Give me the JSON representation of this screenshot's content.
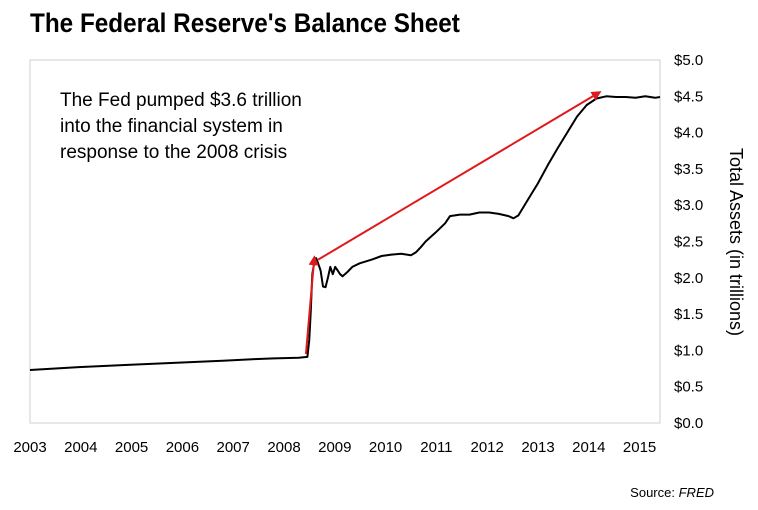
{
  "chart_data": {
    "type": "line",
    "title": "The Federal Reserve's Balance Sheet",
    "ylabel": "Total Assets (in trillions)",
    "xlabel": "",
    "x_tick_labels": [
      "2003",
      "2004",
      "2005",
      "2006",
      "2007",
      "2008",
      "2009",
      "2010",
      "2011",
      "2012",
      "2013",
      "2014",
      "2015"
    ],
    "y_tick_labels": [
      "$0.0",
      "$0.5",
      "$1.0",
      "$1.5",
      "$2.0",
      "$2.5",
      "$3.0",
      "$3.5",
      "$4.0",
      "$4.5",
      "$5.0"
    ],
    "ylim": [
      0,
      5
    ],
    "xlim": [
      2003,
      2015.9
    ],
    "grid": false,
    "y_axis_side": "right",
    "annotation": {
      "lines": [
        "The Fed pumped $3.6 trillion",
        "into the financial system in",
        "response to the 2008 crisis"
      ]
    },
    "series": [
      {
        "x": [
          2003.0,
          2004.0,
          2005.0,
          2006.0,
          2007.0,
          2007.6,
          2008.0,
          2008.5,
          2008.68,
          2008.72,
          2008.75,
          2008.78,
          2008.82,
          2008.86,
          2008.9,
          2008.95,
          2009.0,
          2009.05,
          2009.1,
          2009.15,
          2009.2,
          2009.25,
          2009.3,
          2009.35,
          2009.4,
          2009.5,
          2009.6,
          2009.75,
          2009.9,
          2010.0,
          2010.2,
          2010.4,
          2010.6,
          2010.8,
          2010.9,
          2011.0,
          2011.1,
          2011.3,
          2011.5,
          2011.6,
          2011.8,
          2012.0,
          2012.2,
          2012.4,
          2012.6,
          2012.8,
          2012.9,
          2013.0,
          2013.2,
          2013.4,
          2013.6,
          2013.8,
          2014.0,
          2014.2,
          2014.4,
          2014.6,
          2014.8,
          2015.0,
          2015.2,
          2015.4,
          2015.6,
          2015.8,
          2015.9
        ],
        "values": [
          0.73,
          0.77,
          0.8,
          0.83,
          0.86,
          0.88,
          0.89,
          0.9,
          0.91,
          1.15,
          1.55,
          2.05,
          2.2,
          2.27,
          2.2,
          2.1,
          1.88,
          1.87,
          2.0,
          2.15,
          2.05,
          2.15,
          2.1,
          2.05,
          2.02,
          2.08,
          2.15,
          2.2,
          2.23,
          2.25,
          2.3,
          2.32,
          2.33,
          2.31,
          2.35,
          2.42,
          2.5,
          2.62,
          2.75,
          2.85,
          2.87,
          2.87,
          2.9,
          2.9,
          2.88,
          2.85,
          2.82,
          2.86,
          3.08,
          3.3,
          3.55,
          3.78,
          4.0,
          4.22,
          4.38,
          4.47,
          4.5,
          4.49,
          4.49,
          4.48,
          4.5,
          4.48,
          4.49
        ]
      }
    ],
    "arrows": [
      {
        "from": [
          2008.65,
          0.95
        ],
        "to": [
          2008.82,
          2.27
        ],
        "color": "#e0191b"
      },
      {
        "from": [
          2008.9,
          2.25
        ],
        "to": [
          2014.65,
          4.55
        ],
        "color": "#e0191b"
      }
    ],
    "line_color": "#000000",
    "arrow_color": "#e0191b"
  },
  "footer": {
    "source_label": "Source:",
    "source_name": "FRED"
  }
}
